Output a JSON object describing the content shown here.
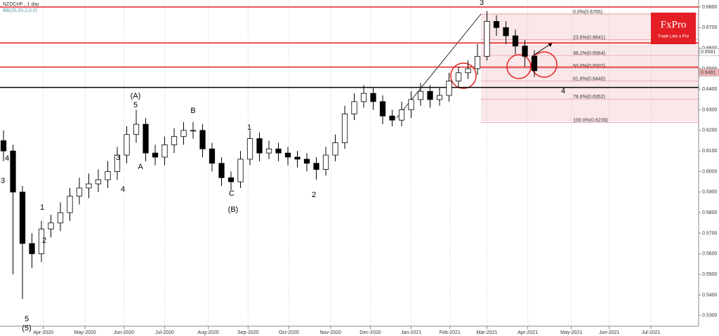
{
  "chart_data": {
    "type": "candlestick",
    "title": "NZDCHF , 1 day",
    "subtitle": "BB(20,20,2,0,0)",
    "logo": {
      "name": "FxPro",
      "tagline": "Trade Like a Pro"
    },
    "categories": [
      null,
      null,
      null,
      null,
      null,
      null,
      null,
      null,
      null,
      null,
      null,
      null,
      null,
      null,
      null,
      null,
      null,
      null,
      null,
      null,
      null,
      null,
      null,
      null,
      null,
      null,
      null,
      null,
      null,
      null,
      null,
      null,
      null,
      null,
      null,
      null,
      null,
      null,
      null,
      null,
      null,
      null,
      null,
      null,
      null,
      null,
      null,
      null,
      null,
      null,
      null,
      null,
      null,
      null,
      null,
      null,
      null
    ],
    "open": [
      0.615,
      0.61,
      0.59,
      0.565,
      0.56,
      0.572,
      0.575,
      0.58,
      0.588,
      0.592,
      0.594,
      0.596,
      0.6,
      0.608,
      0.618,
      0.623,
      0.609,
      0.607,
      0.613,
      0.617,
      0.62,
      0.62,
      0.611,
      0.604,
      0.597,
      0.595,
      0.606,
      0.616,
      0.609,
      0.611,
      0.609,
      0.607,
      0.606,
      0.604,
      0.601,
      0.608,
      0.614,
      0.628,
      0.634,
      0.638,
      0.634,
      0.627,
      0.625,
      0.63,
      0.635,
      0.639,
      0.635,
      0.637,
      0.644,
      0.648,
      0.65,
      0.656,
      0.673,
      0.67,
      0.666,
      0.661,
      0.656
    ],
    "high": [
      0.62,
      0.613,
      0.593,
      0.57,
      0.576,
      0.579,
      0.585,
      0.592,
      0.597,
      0.599,
      0.601,
      0.605,
      0.612,
      0.622,
      0.63,
      0.626,
      0.613,
      0.617,
      0.621,
      0.624,
      0.624,
      0.623,
      0.614,
      0.607,
      0.6,
      0.61,
      0.62,
      0.619,
      0.615,
      0.614,
      0.612,
      0.61,
      0.609,
      0.607,
      0.612,
      0.618,
      0.632,
      0.638,
      0.642,
      0.641,
      0.637,
      0.63,
      0.634,
      0.639,
      0.643,
      0.642,
      0.641,
      0.648,
      0.651,
      0.654,
      0.662,
      0.678,
      0.676,
      0.673,
      0.669,
      0.664,
      0.659
    ],
    "low": [
      0.605,
      0.55,
      0.538,
      0.553,
      0.556,
      0.568,
      0.571,
      0.576,
      0.584,
      0.587,
      0.59,
      0.592,
      0.596,
      0.604,
      0.614,
      0.605,
      0.603,
      0.603,
      0.609,
      0.613,
      0.616,
      0.607,
      0.6,
      0.593,
      0.591,
      0.592,
      0.603,
      0.605,
      0.606,
      0.605,
      0.603,
      0.602,
      0.6,
      0.596,
      0.598,
      0.605,
      0.611,
      0.625,
      0.631,
      0.63,
      0.623,
      0.622,
      0.622,
      0.626,
      0.632,
      0.631,
      0.632,
      0.634,
      0.641,
      0.645,
      0.647,
      0.654,
      0.666,
      0.662,
      0.657,
      0.651,
      0.646
    ],
    "close": [
      0.61,
      0.59,
      0.565,
      0.56,
      0.572,
      0.575,
      0.58,
      0.588,
      0.592,
      0.594,
      0.596,
      0.6,
      0.608,
      0.618,
      0.623,
      0.609,
      0.607,
      0.613,
      0.617,
      0.62,
      0.62,
      0.611,
      0.604,
      0.597,
      0.595,
      0.606,
      0.616,
      0.609,
      0.611,
      0.609,
      0.607,
      0.606,
      0.604,
      0.601,
      0.608,
      0.614,
      0.628,
      0.634,
      0.638,
      0.634,
      0.627,
      0.625,
      0.63,
      0.635,
      0.639,
      0.635,
      0.637,
      0.644,
      0.648,
      0.65,
      0.656,
      0.673,
      0.67,
      0.666,
      0.661,
      0.656,
      0.649
    ],
    "color": "#000000",
    "xlim": [
      -0.37,
      73.33
    ],
    "xticks": [
      {
        "value": 4.2,
        "label": "Apr-2020"
      },
      {
        "value": 8.6,
        "label": "May-2020"
      },
      {
        "value": 12.7,
        "label": "Jun-2020"
      },
      {
        "value": 17,
        "label": "Jul-2020"
      },
      {
        "value": 21.6,
        "label": "Aug-2020"
      },
      {
        "value": 25.8,
        "label": "Sep-2020"
      },
      {
        "value": 30.1,
        "label": "Oct-2020"
      },
      {
        "value": 34.5,
        "label": "Nov-2020"
      },
      {
        "value": 38.7,
        "label": "Dec-2020"
      },
      {
        "value": 43,
        "label": "Jan-2021"
      },
      {
        "value": 47.1,
        "label": "Feb-2021"
      },
      {
        "value": 51,
        "label": "Mar-2021"
      },
      {
        "value": 55.3,
        "label": "Apr-2021"
      },
      {
        "value": 59.9,
        "label": "May-2021"
      },
      {
        "value": 63.9,
        "label": "Jun-2021"
      },
      {
        "value": 68.3,
        "label": "Jul-2021"
      }
    ],
    "ylim": [
      0.5248,
      0.6834
    ],
    "yticks": [
      {
        "value": 0.53,
        "label": "0.5300"
      },
      {
        "value": 0.54,
        "label": "0.5400"
      },
      {
        "value": 0.55,
        "label": "0.5500"
      },
      {
        "value": 0.56,
        "label": "0.5600"
      },
      {
        "value": 0.57,
        "label": "0.5700"
      },
      {
        "value": 0.58,
        "label": "0.5800"
      },
      {
        "value": 0.59,
        "label": "0.5900"
      },
      {
        "value": 0.6,
        "label": "0.6000"
      },
      {
        "value": 0.61,
        "label": "0.6100"
      },
      {
        "value": 0.62,
        "label": "0.6200"
      },
      {
        "value": 0.63,
        "label": "0.6300"
      },
      {
        "value": 0.64,
        "label": "0.6400"
      },
      {
        "value": 0.65,
        "label": "0.6500"
      },
      {
        "value": 0.66,
        "label": "0.6600"
      },
      {
        "value": 0.67,
        "label": "0.6700"
      },
      {
        "value": 0.68,
        "label": "0.6800"
      }
    ],
    "grid": true,
    "levels": [
      {
        "value": 0.68,
        "color": "#e02020"
      },
      {
        "value": 0.6625,
        "color": "#e02020"
      },
      {
        "value": 0.6508,
        "color": "#e02020"
      },
      {
        "value": 0.6409,
        "color": "#000000"
      }
    ],
    "fib": [
      {
        "value": 0.6765,
        "label": "0.0%(0.6765)"
      },
      {
        "value": 0.6641,
        "label": "23.6%(0.6641)"
      },
      {
        "value": 0.6564,
        "label": "38.2%(0.6564)"
      },
      {
        "value": 0.6502,
        "label": "50.0%(0.6502)"
      },
      {
        "value": 0.644,
        "label": "61.8%(0.6440)"
      },
      {
        "value": 0.6352,
        "label": "78.6%(0.6352)"
      },
      {
        "value": 0.6239,
        "label": "100.0%(0.6239)"
      }
    ],
    "price_marks": [
      {
        "value": 0.6581,
        "label": "0.6581",
        "color": "#ffffff"
      },
      {
        "value": 0.6481,
        "label": "0.6481",
        "color": "#f4b8b8"
      }
    ],
    "annotations": [
      "3",
      "(A)",
      "5",
      "A",
      "B",
      "1",
      "C",
      "(B)",
      "2",
      "4",
      "5",
      "(5)",
      "3",
      "4",
      "1",
      "2",
      "3",
      "4"
    ]
  }
}
